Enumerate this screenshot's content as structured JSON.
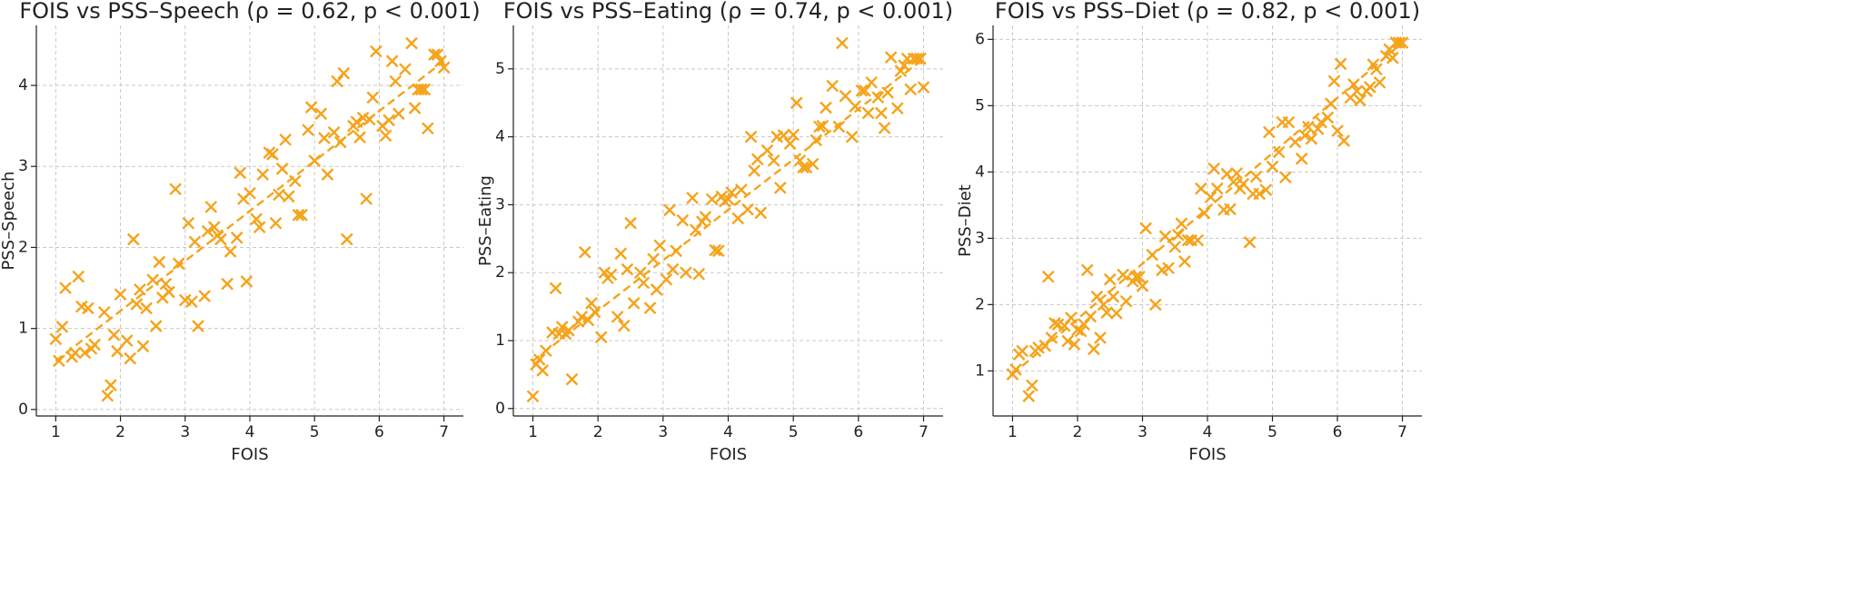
{
  "chart_data": [
    {
      "type": "scatter",
      "title": "FOIS vs PSS–Speech (ρ = 0.62, p < 0.001)",
      "xlabel": "FOIS",
      "ylabel": "PSS–Speech",
      "color": "#f5a31a",
      "grid": true,
      "xlim": [
        0.7,
        7.3
      ],
      "ylim": [
        -0.08,
        4.74
      ],
      "xticks": [
        1,
        2,
        3,
        4,
        5,
        6,
        7
      ],
      "yticks": [
        0,
        1,
        2,
        3,
        4
      ],
      "x": [
        1.0,
        1.05,
        1.1,
        1.15,
        1.25,
        1.3,
        1.35,
        1.4,
        1.45,
        1.5,
        1.55,
        1.6,
        1.75,
        1.8,
        1.85,
        1.9,
        1.95,
        2.0,
        2.1,
        2.15,
        2.2,
        2.25,
        2.3,
        2.35,
        2.4,
        2.5,
        2.55,
        2.6,
        2.65,
        2.7,
        2.75,
        2.85,
        2.9,
        3.0,
        3.05,
        3.1,
        3.15,
        3.2,
        3.3,
        3.35,
        3.4,
        3.45,
        3.5,
        3.55,
        3.65,
        3.7,
        3.8,
        3.85,
        3.9,
        3.95,
        4.0,
        4.1,
        4.15,
        4.2,
        4.3,
        4.35,
        4.4,
        4.45,
        4.5,
        4.55,
        4.6,
        4.7,
        4.75,
        4.8,
        4.9,
        4.95,
        5.0,
        5.1,
        5.15,
        5.2,
        5.3,
        5.35,
        5.4,
        5.45,
        5.5,
        5.6,
        5.65,
        5.7,
        5.75,
        5.8,
        5.85,
        5.9,
        5.95,
        6.05,
        6.1,
        6.15,
        6.2,
        6.25,
        6.3,
        6.4,
        6.5,
        6.55,
        6.6,
        6.65,
        6.7,
        6.75,
        6.85,
        6.9,
        6.95,
        7.0
      ],
      "values": [
        0.87,
        0.6,
        1.02,
        1.5,
        0.65,
        0.7,
        1.64,
        1.27,
        0.7,
        1.25,
        0.75,
        0.8,
        1.2,
        0.17,
        0.3,
        0.92,
        0.72,
        1.42,
        0.85,
        0.63,
        2.1,
        1.3,
        1.48,
        0.78,
        1.25,
        1.6,
        1.03,
        1.82,
        1.38,
        1.55,
        1.45,
        2.72,
        1.8,
        1.35,
        2.3,
        1.33,
        2.07,
        1.03,
        1.4,
        2.2,
        2.5,
        2.25,
        2.15,
        2.1,
        1.55,
        1.95,
        2.12,
        2.92,
        2.6,
        1.58,
        2.67,
        2.35,
        2.25,
        2.9,
        3.17,
        3.15,
        2.3,
        2.65,
        2.97,
        3.33,
        2.63,
        2.82,
        2.4,
        2.4,
        3.45,
        3.73,
        3.07,
        3.65,
        3.35,
        2.9,
        3.42,
        4.05,
        3.3,
        4.15,
        2.1,
        3.5,
        3.55,
        3.36,
        3.6,
        2.6,
        3.58,
        3.85,
        4.42,
        3.5,
        3.38,
        3.57,
        4.3,
        4.05,
        3.65,
        4.2,
        4.52,
        3.72,
        3.95,
        3.95,
        3.95,
        3.47,
        4.38,
        4.38,
        4.3,
        4.22
      ],
      "fit": {
        "x": [
          1,
          7
        ],
        "values": [
          0.6,
          4.3
        ]
      }
    },
    {
      "type": "scatter",
      "title": "FOIS vs PSS–Eating (ρ = 0.74, p < 0.001)",
      "xlabel": "FOIS",
      "ylabel": "PSS–Eating",
      "color": "#f5a31a",
      "grid": true,
      "xlim": [
        0.7,
        7.3
      ],
      "ylim": [
        -0.11,
        5.64
      ],
      "xticks": [
        1,
        2,
        3,
        4,
        5,
        6,
        7
      ],
      "yticks": [
        0,
        1,
        2,
        3,
        4,
        5
      ],
      "x": [
        1.0,
        1.05,
        1.1,
        1.15,
        1.2,
        1.3,
        1.35,
        1.4,
        1.45,
        1.5,
        1.55,
        1.6,
        1.7,
        1.75,
        1.8,
        1.85,
        1.9,
        1.95,
        2.05,
        2.1,
        2.15,
        2.2,
        2.3,
        2.35,
        2.4,
        2.45,
        2.5,
        2.55,
        2.65,
        2.7,
        2.8,
        2.85,
        2.9,
        2.95,
        3.05,
        3.1,
        3.15,
        3.2,
        3.3,
        3.35,
        3.45,
        3.5,
        3.55,
        3.6,
        3.65,
        3.75,
        3.8,
        3.85,
        3.9,
        3.95,
        4.0,
        4.05,
        4.15,
        4.2,
        4.3,
        4.35,
        4.4,
        4.45,
        4.5,
        4.6,
        4.7,
        4.75,
        4.8,
        4.85,
        4.95,
        5.0,
        5.05,
        5.1,
        5.15,
        5.2,
        5.3,
        5.35,
        5.4,
        5.45,
        5.5,
        5.6,
        5.7,
        5.75,
        5.8,
        5.9,
        5.95,
        6.05,
        6.1,
        6.15,
        6.2,
        6.3,
        6.35,
        6.4,
        6.45,
        6.5,
        6.6,
        6.65,
        6.7,
        6.75,
        6.8,
        6.85,
        6.9,
        6.95,
        7.0
      ],
      "values": [
        0.18,
        0.65,
        0.72,
        0.56,
        0.85,
        1.12,
        1.77,
        1.1,
        1.2,
        1.1,
        1.15,
        0.43,
        1.28,
        1.35,
        2.3,
        1.3,
        1.55,
        1.42,
        1.05,
        2.0,
        1.92,
        1.97,
        1.35,
        2.28,
        1.22,
        2.05,
        2.73,
        1.55,
        2.0,
        1.85,
        1.48,
        2.2,
        1.75,
        2.4,
        1.9,
        2.92,
        2.05,
        2.32,
        2.77,
        2.0,
        3.1,
        2.63,
        1.98,
        2.75,
        2.82,
        3.08,
        2.33,
        2.32,
        3.12,
        3.05,
        3.08,
        3.18,
        2.8,
        3.22,
        2.93,
        4.0,
        3.5,
        3.67,
        2.88,
        3.8,
        3.65,
        4.0,
        3.25,
        4.02,
        3.9,
        4.03,
        4.5,
        3.65,
        3.55,
        3.55,
        3.6,
        3.95,
        4.15,
        4.16,
        4.43,
        4.75,
        4.15,
        5.38,
        4.6,
        4.0,
        4.45,
        4.68,
        4.68,
        4.35,
        4.8,
        4.58,
        4.35,
        4.13,
        4.65,
        5.17,
        4.42,
        4.97,
        5.05,
        5.15,
        4.7,
        5.15,
        5.15,
        5.15,
        4.73
      ],
      "fit": {
        "x": [
          1,
          7
        ],
        "values": [
          0.7,
          5.15
        ]
      }
    },
    {
      "type": "scatter",
      "title": "FOIS vs PSS–Diet (ρ = 0.82, p < 0.001)",
      "xlabel": "FOIS",
      "ylabel": "PSS–Diet",
      "color": "#f5a31a",
      "grid": true,
      "xlim": [
        0.7,
        7.3
      ],
      "ylim": [
        0.32,
        6.21
      ],
      "xticks": [
        1,
        2,
        3,
        4,
        5,
        6,
        7
      ],
      "yticks": [
        1,
        2,
        3,
        4,
        5,
        6
      ],
      "x": [
        1.0,
        1.05,
        1.1,
        1.15,
        1.25,
        1.3,
        1.35,
        1.4,
        1.5,
        1.55,
        1.6,
        1.65,
        1.7,
        1.8,
        1.85,
        1.9,
        1.95,
        2.0,
        2.05,
        2.1,
        2.15,
        2.2,
        2.25,
        2.3,
        2.35,
        2.4,
        2.45,
        2.5,
        2.55,
        2.6,
        2.7,
        2.75,
        2.85,
        2.9,
        2.95,
        3.0,
        3.05,
        3.15,
        3.2,
        3.3,
        3.35,
        3.4,
        3.5,
        3.55,
        3.6,
        3.65,
        3.7,
        3.75,
        3.85,
        3.9,
        3.95,
        4.05,
        4.1,
        4.15,
        4.25,
        4.3,
        4.35,
        4.4,
        4.45,
        4.5,
        4.55,
        4.65,
        4.7,
        4.75,
        4.8,
        4.9,
        4.95,
        5.0,
        5.1,
        5.15,
        5.2,
        5.25,
        5.35,
        5.45,
        5.5,
        5.55,
        5.6,
        5.7,
        5.75,
        5.85,
        5.9,
        5.95,
        6.0,
        6.05,
        6.1,
        6.2,
        6.25,
        6.3,
        6.35,
        6.45,
        6.5,
        6.55,
        6.6,
        6.65,
        6.75,
        6.8,
        6.85,
        6.9,
        6.95,
        7.0
      ],
      "values": [
        0.95,
        1.02,
        1.25,
        1.3,
        0.62,
        0.78,
        1.3,
        1.35,
        1.38,
        2.42,
        1.5,
        1.72,
        1.7,
        1.68,
        1.45,
        1.8,
        1.4,
        1.62,
        1.6,
        1.7,
        2.52,
        1.82,
        1.33,
        2.12,
        1.5,
        2.0,
        1.88,
        2.38,
        2.12,
        1.87,
        2.45,
        2.05,
        2.35,
        2.42,
        2.42,
        2.28,
        3.15,
        2.75,
        2.0,
        2.52,
        3.03,
        2.55,
        2.87,
        3.05,
        3.22,
        2.65,
        2.97,
        2.97,
        2.97,
        3.75,
        3.38,
        3.62,
        4.05,
        3.75,
        3.43,
        3.97,
        3.44,
        3.85,
        3.98,
        3.75,
        3.82,
        2.94,
        3.67,
        3.93,
        3.67,
        3.73,
        4.6,
        4.08,
        4.3,
        4.75,
        3.92,
        4.75,
        4.45,
        4.2,
        4.55,
        4.68,
        4.5,
        4.65,
        4.75,
        4.82,
        5.03,
        5.37,
        4.62,
        5.63,
        4.47,
        5.12,
        5.32,
        5.22,
        5.08,
        5.22,
        5.28,
        5.62,
        5.55,
        5.35,
        5.75,
        5.85,
        5.72,
        5.95,
        5.95,
        5.95
      ],
      "fit": {
        "x": [
          1,
          7
        ],
        "values": [
          0.95,
          5.95
        ]
      }
    }
  ]
}
